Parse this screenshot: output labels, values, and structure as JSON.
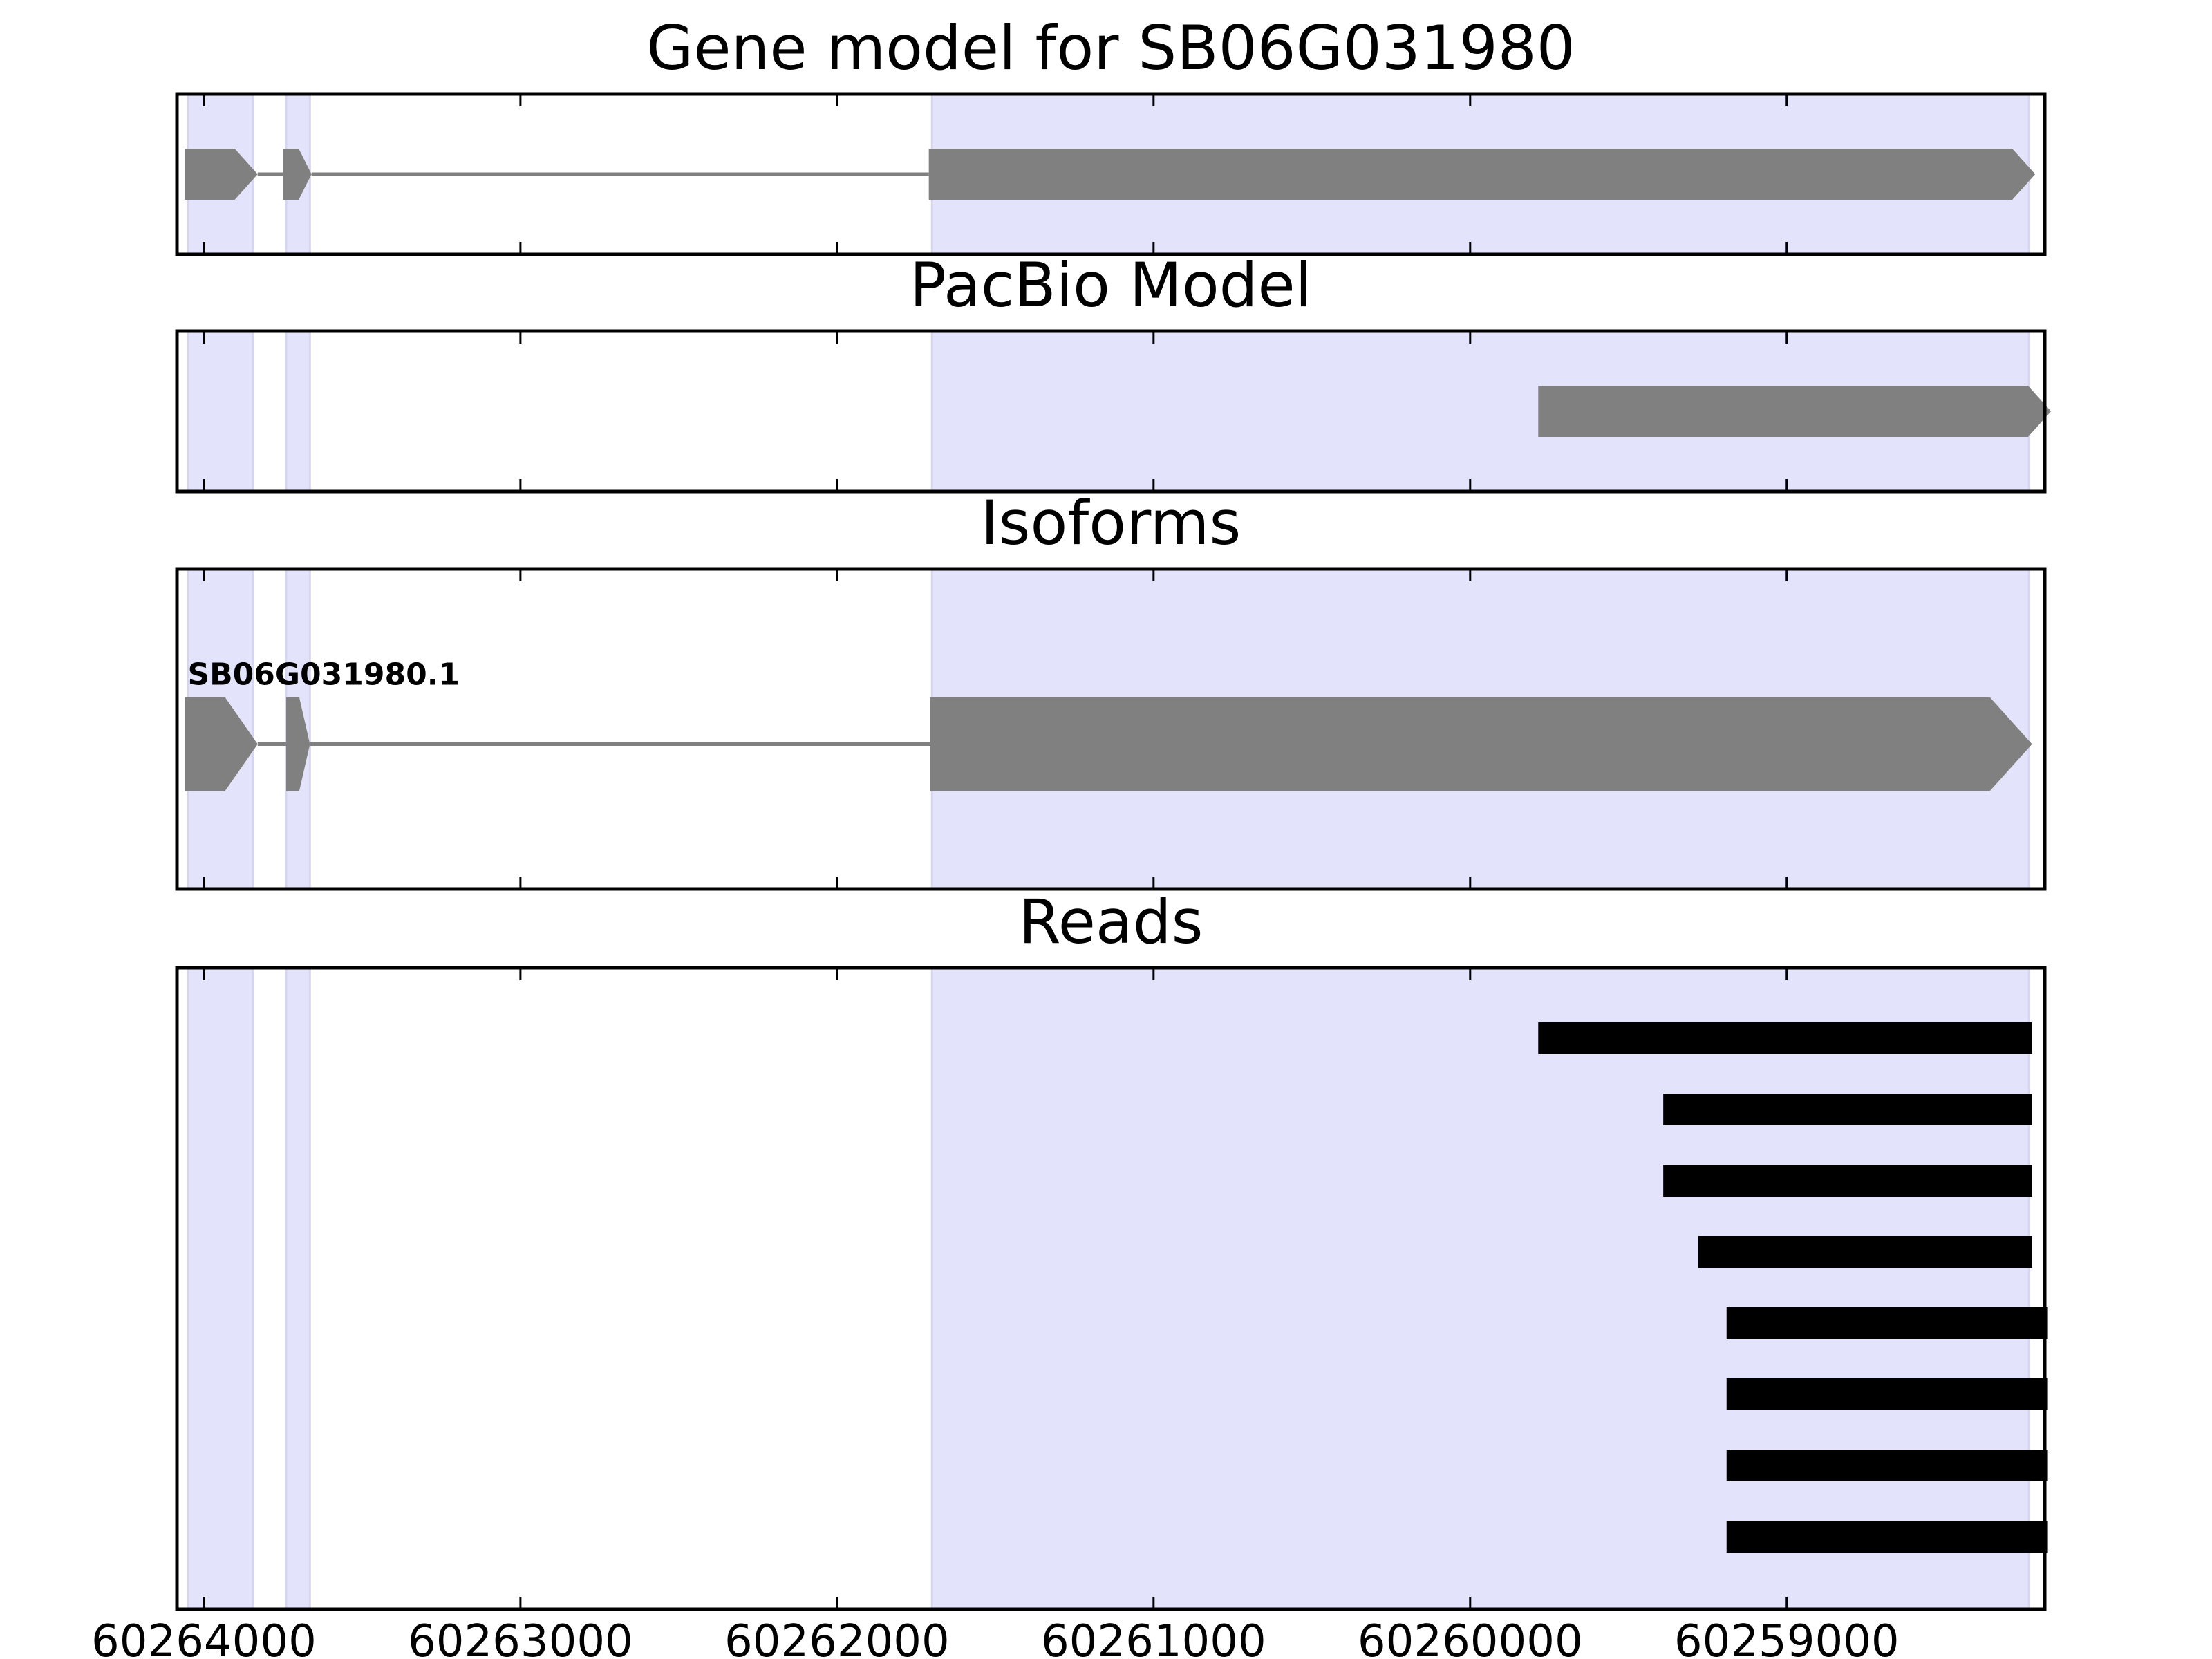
{
  "chart_data": {
    "type": "gene-track",
    "x_axis": {
      "inverted": true,
      "range": [
        60264085,
        60258185
      ],
      "tick_values": [
        60264000,
        60263000,
        60262000,
        60261000,
        60260000,
        60259000
      ],
      "tick_labels": [
        "60264000",
        "60263000",
        "60262000",
        "60261000",
        "60260000",
        "60259000"
      ]
    },
    "colors": {
      "exon_highlight": "#e3e3fc",
      "feature": "#808080",
      "read": "#000000",
      "frame": "#000000"
    },
    "exon_highlights": [
      [
        60264050,
        60263845
      ],
      [
        60263740,
        60263665
      ],
      [
        60261700,
        60258235
      ]
    ],
    "panels": [
      {
        "title": "Gene model for SB06G031980",
        "features": [
          {
            "exons": [
              [
                60264060,
                60263830
              ],
              [
                60263750,
                60263660
              ],
              [
                60261710,
                60258215
              ]
            ],
            "strand": "-"
          }
        ]
      },
      {
        "title": "PacBio Model",
        "features": [
          {
            "exons": [
              [
                60259785,
                60258165
              ]
            ],
            "strand": "-"
          }
        ]
      },
      {
        "title": "Isoforms",
        "features": [
          {
            "name": "SB06G031980.1",
            "exons": [
              [
                60264060,
                60263830
              ],
              [
                60263740,
                60263665
              ],
              [
                60261705,
                60258225
              ]
            ],
            "strand": "-"
          }
        ]
      },
      {
        "title": "Reads",
        "reads": [
          [
            60259785,
            60258225
          ],
          [
            60259390,
            60258225
          ],
          [
            60259390,
            60258225
          ],
          [
            60259280,
            60258225
          ],
          [
            60259190,
            60258175
          ],
          [
            60259190,
            60258175
          ],
          [
            60259190,
            60258175
          ],
          [
            60259190,
            60258175
          ]
        ]
      }
    ]
  }
}
